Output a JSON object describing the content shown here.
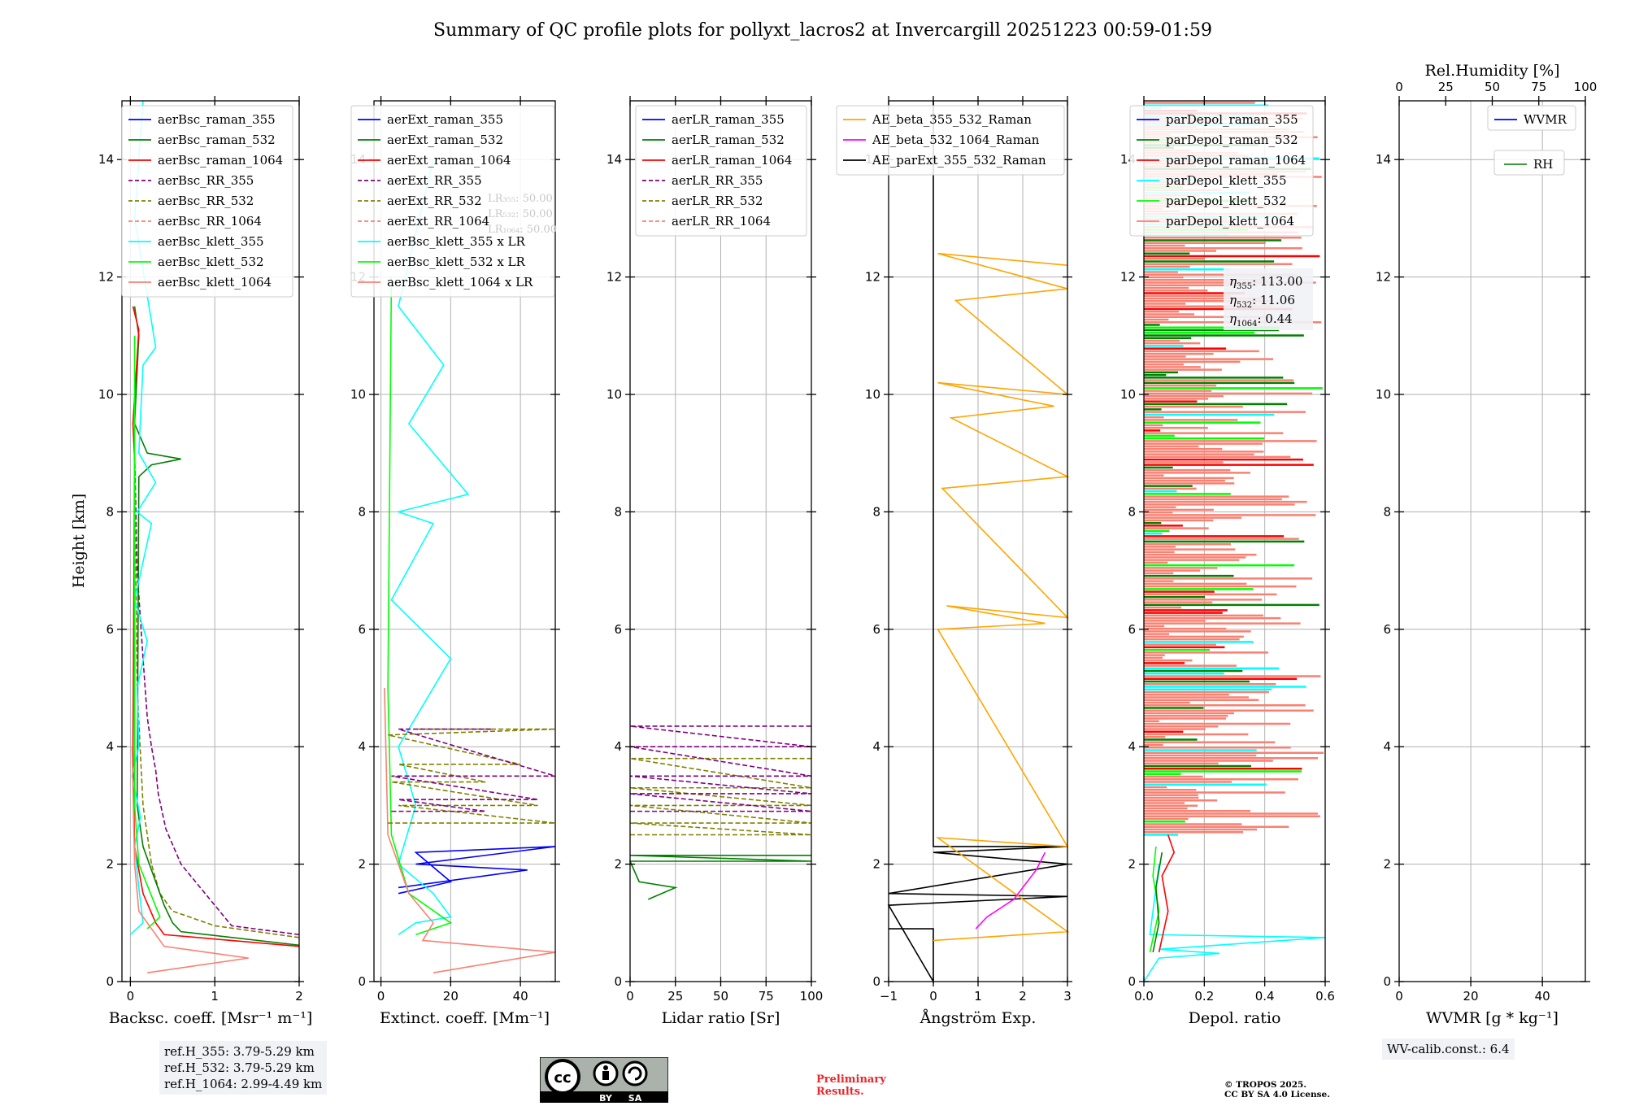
{
  "title": "Summary of QC profile plots for pollyxt_lacros2 at Invercargill 20251223 00:59-01:59",
  "y_axis_label": "Height [km]",
  "ref_heights": [
    "ref.H_355: 3.79-5.29 km",
    "ref.H_532: 3.79-5.29 km",
    "ref.H_1064: 2.99-4.49 km"
  ],
  "wv_calib": "WV-calib.const.: 6.4",
  "license_badge": {
    "cc": "cc",
    "by": "BY",
    "sa": "SA"
  },
  "preliminary": [
    "Preliminary",
    "Results."
  ],
  "copyright": [
    "© TROPOS 2025.",
    "CC BY SA 4.0 License."
  ],
  "eta_annotations": [
    {
      "label": "η",
      "sub": "355",
      "value": ": 113.00"
    },
    {
      "label": "η",
      "sub": "532",
      "value": ": 11.06"
    },
    {
      "label": "η",
      "sub": "1064",
      "value": ": 0.44"
    }
  ],
  "lr_faded_annotations": [
    "LR₃₅₅: 50.00",
    "LR₅₃₂: 50.00",
    "LR₁₀₆₄: 50.00"
  ],
  "colors": {
    "blue": "#0000ff",
    "green": "#008000",
    "red": "#ff0000",
    "purple": "#800080",
    "olive": "#808000",
    "salmon": "#fa8072",
    "cyan": "#00ffff",
    "lime": "#00ff00",
    "orange": "#ffa500",
    "magenta": "#ff00ff",
    "black": "#000000",
    "darkgreen": "#228b22"
  },
  "chart_data": [
    {
      "type": "line",
      "id": "backscatter",
      "xlabel": "Backsc. coeff. [Msr⁻¹ m⁻¹]",
      "xlim": [
        -0.1,
        2.0
      ],
      "xticks": [
        0,
        1,
        2
      ],
      "xtick_labels": [
        "0",
        "1",
        "2"
      ],
      "ylabel": "Height [km]",
      "ylim": [
        0,
        15
      ],
      "yticks": [
        0,
        2,
        4,
        6,
        8,
        10,
        12,
        14
      ],
      "grid": true,
      "legend": [
        "aerBsc_raman_355",
        "aerBsc_raman_532",
        "aerBsc_raman_1064",
        "aerBsc_RR_355",
        "aerBsc_RR_532",
        "aerBsc_RR_1064",
        "aerBsc_klett_355",
        "aerBsc_klett_532",
        "aerBsc_klett_1064"
      ],
      "legend_colors": [
        "blue",
        "green",
        "red",
        "purple",
        "olive",
        "salmon",
        "cyan",
        "lime",
        "salmon"
      ],
      "legend_dash": [
        false,
        false,
        false,
        true,
        true,
        true,
        false,
        false,
        false
      ],
      "series": [
        {
          "name": "aerBsc_RR_355",
          "color": "purple",
          "dash": true,
          "x": [
            2.0,
            1.2,
            1.0,
            0.6,
            0.42,
            0.33,
            0.3,
            0.25,
            0.2,
            0.15,
            0.08,
            0.05
          ],
          "y": [
            0.8,
            0.95,
            1.3,
            2.0,
            2.6,
            3.2,
            3.6,
            4.0,
            4.5,
            5.5,
            7.0,
            9.0
          ]
        },
        {
          "name": "aerBsc_RR_532",
          "color": "olive",
          "dash": true,
          "x": [
            2.0,
            1.0,
            0.5,
            0.35,
            0.25,
            0.15,
            0.08,
            0.05
          ],
          "y": [
            0.75,
            0.95,
            1.2,
            1.5,
            2.0,
            3.0,
            5.0,
            9.0
          ]
        },
        {
          "name": "aerBsc_raman_532",
          "color": "green",
          "dash": false,
          "x": [
            2.0,
            0.6,
            0.5,
            0.4,
            0.3,
            0.15,
            0.08,
            0.1,
            0.25,
            0.6,
            0.2,
            0.05,
            0.1,
            0.05
          ],
          "y": [
            0.62,
            0.85,
            1.0,
            1.3,
            1.7,
            2.3,
            3.0,
            8.6,
            8.8,
            8.9,
            9.0,
            9.5,
            11.0,
            11.5
          ]
        },
        {
          "name": "aerBsc_raman_1064",
          "color": "red",
          "dash": false,
          "x": [
            2.0,
            0.4,
            0.3,
            0.15,
            0.05,
            0.03,
            0.05,
            0.03,
            0.1,
            0.03
          ],
          "y": [
            0.6,
            0.8,
            1.0,
            1.5,
            2.3,
            4.0,
            8.9,
            9.5,
            11.1,
            11.5
          ]
        },
        {
          "name": "aerBsc_klett_355",
          "color": "cyan",
          "dash": false,
          "x": [
            0.0,
            0.15,
            0.1,
            0.05,
            0.12,
            0.02,
            0.1,
            0.08,
            0.2,
            0.05,
            0.25,
            0.08,
            0.3,
            0.1,
            0.15,
            0.3,
            0.05,
            0.15
          ],
          "y": [
            0.8,
            1.0,
            1.6,
            2.3,
            2.8,
            3.5,
            4.0,
            5.0,
            5.8,
            6.5,
            7.8,
            8.0,
            8.5,
            9.0,
            10.5,
            10.8,
            13.0,
            15.0
          ]
        },
        {
          "name": "aerBsc_klett_532",
          "color": "lime",
          "dash": false,
          "x": [
            0.2,
            0.35,
            0.1,
            0.05,
            0.05
          ],
          "y": [
            0.9,
            1.1,
            2.0,
            3.0,
            11.0
          ]
        },
        {
          "name": "aerBsc_klett_1064",
          "color": "salmon",
          "dash": false,
          "x": [
            0.2,
            1.4,
            0.4,
            0.1,
            0.05,
            0.02
          ],
          "y": [
            0.15,
            0.4,
            0.6,
            1.2,
            2.0,
            4.0
          ]
        }
      ]
    },
    {
      "type": "line",
      "id": "extinction",
      "xlabel": "Extinct. coeff. [Mm⁻¹]",
      "xlim": [
        -2,
        50
      ],
      "xticks": [
        0,
        20,
        40
      ],
      "xtick_labels": [
        "0",
        "20",
        "40"
      ],
      "ylabel": "",
      "ylim": [
        0,
        15
      ],
      "yticks": [
        0,
        2,
        4,
        6,
        8,
        10,
        12,
        14
      ],
      "grid": true,
      "legend": [
        "aerExt_raman_355",
        "aerExt_raman_532",
        "aerExt_raman_1064",
        "aerExt_RR_355",
        "aerExt_RR_532",
        "aerExt_RR_1064",
        "aerBsc_klett_355 x LR",
        "aerBsc_klett_532 x LR",
        "aerBsc_klett_1064 x LR"
      ],
      "legend_colors": [
        "blue",
        "green",
        "red",
        "purple",
        "olive",
        "salmon",
        "cyan",
        "lime",
        "salmon"
      ],
      "legend_dash": [
        false,
        false,
        false,
        true,
        true,
        true,
        false,
        false,
        false
      ],
      "series": [
        {
          "name": "aerExt_raman_355",
          "color": "blue",
          "dash": false,
          "x": [
            5,
            42,
            10,
            50,
            10,
            20,
            5
          ],
          "y": [
            1.6,
            1.9,
            2.0,
            2.3,
            2.2,
            1.7,
            1.5
          ]
        },
        {
          "name": "aerBsc_klett_355 x LR",
          "color": "cyan",
          "dash": false,
          "x": [
            5,
            10,
            20,
            15,
            5,
            10,
            5,
            20,
            3,
            15,
            5,
            25,
            8,
            18,
            5,
            15
          ],
          "y": [
            0.8,
            1.0,
            1.1,
            1.5,
            2.0,
            3.0,
            4.0,
            5.5,
            6.5,
            7.8,
            8.0,
            8.3,
            9.5,
            10.5,
            11.5,
            14.0
          ]
        },
        {
          "name": "aerBsc_klett_532 x LR",
          "color": "lime",
          "dash": false,
          "x": [
            10,
            20,
            8,
            3,
            2,
            3
          ],
          "y": [
            0.8,
            1.0,
            1.5,
            2.5,
            5.0,
            12.0
          ]
        },
        {
          "name": "aerBsc_klett_1064 x LR",
          "color": "salmon",
          "dash": false,
          "x": [
            15,
            50,
            12,
            15,
            8,
            2,
            1
          ],
          "y": [
            0.15,
            0.5,
            0.7,
            1.0,
            1.5,
            2.5,
            5.0
          ]
        },
        {
          "name": "aerExt_RR_532",
          "color": "olive",
          "dash": true,
          "x": [
            2,
            50,
            5,
            45,
            3,
            30,
            5,
            40,
            2,
            50,
            10
          ],
          "y": [
            2.7,
            2.7,
            3.0,
            3.0,
            3.4,
            3.4,
            3.7,
            3.7,
            4.2,
            4.3,
            4.3
          ]
        },
        {
          "name": "aerExt_RR_355",
          "color": "purple",
          "dash": true,
          "x": [
            3,
            30,
            5,
            45,
            3,
            50,
            5,
            32
          ],
          "y": [
            2.9,
            2.9,
            3.1,
            3.1,
            3.5,
            3.5,
            4.3,
            4.3
          ]
        }
      ]
    },
    {
      "type": "line",
      "id": "lidar_ratio",
      "xlabel": "Lidar ratio [Sr]",
      "xlim": [
        0,
        100
      ],
      "xticks": [
        0,
        25,
        50,
        75,
        100
      ],
      "xtick_labels": [
        "0",
        "25",
        "50",
        "75",
        "100"
      ],
      "ylabel": "",
      "ylim": [
        0,
        15
      ],
      "yticks": [
        0,
        2,
        4,
        6,
        8,
        10,
        12,
        14
      ],
      "grid": true,
      "legend": [
        "aerLR_raman_355",
        "aerLR_raman_532",
        "aerLR_raman_1064",
        "aerLR_RR_355",
        "aerLR_RR_532",
        "aerLR_RR_1064"
      ],
      "legend_colors": [
        "blue",
        "green",
        "red",
        "purple",
        "olive",
        "salmon"
      ],
      "legend_dash": [
        false,
        false,
        false,
        true,
        true,
        true
      ],
      "series": [
        {
          "name": "aerLR_raman_532",
          "color": "green",
          "dash": false,
          "x": [
            10,
            25,
            5,
            0,
            100,
            0,
            100
          ],
          "y": [
            1.4,
            1.6,
            1.7,
            2.05,
            2.05,
            2.15,
            2.15
          ]
        },
        {
          "name": "aerLR_RR_532",
          "color": "olive",
          "dash": true,
          "x": [
            0,
            100,
            0,
            100,
            0,
            100,
            0,
            100,
            0,
            100
          ],
          "y": [
            2.5,
            2.5,
            2.7,
            2.7,
            3.0,
            3.0,
            3.3,
            3.3,
            3.8,
            3.8
          ]
        },
        {
          "name": "aerLR_RR_355",
          "color": "purple",
          "dash": true,
          "x": [
            0,
            100,
            0,
            100,
            0,
            100,
            0,
            100,
            0,
            100
          ],
          "y": [
            2.9,
            2.9,
            3.2,
            3.2,
            3.5,
            3.5,
            4.0,
            4.0,
            4.35,
            4.35
          ]
        }
      ]
    },
    {
      "type": "line",
      "id": "angstrom",
      "xlabel": "Ångström Exp.",
      "xlim": [
        -1,
        3
      ],
      "xticks": [
        -1,
        0,
        1,
        2,
        3
      ],
      "xtick_labels": [
        "−1",
        "0",
        "1",
        "2",
        "3"
      ],
      "ylabel": "",
      "ylim": [
        0,
        15
      ],
      "yticks": [
        0,
        2,
        4,
        6,
        8,
        10,
        12,
        14
      ],
      "grid": true,
      "legend": [
        "AE_beta_355_532_Raman",
        "AE_beta_532_1064_Raman",
        "AE_parExt_355_532_Raman"
      ],
      "legend_colors": [
        "orange",
        "magenta",
        "black"
      ],
      "legend_dash": [
        false,
        false,
        false
      ],
      "series": [
        {
          "name": "AE_parExt_355_532_Raman",
          "color": "black",
          "dash": false,
          "x": [
            -1,
            0,
            0,
            -1,
            3,
            -1,
            3,
            0,
            3,
            0,
            0
          ],
          "y": [
            0.9,
            0.9,
            0.0,
            1.3,
            1.45,
            1.5,
            2.0,
            2.2,
            2.3,
            2.3,
            15.0
          ]
        },
        {
          "name": "AE_beta_355_532_Raman",
          "color": "orange",
          "dash": false,
          "x": [
            0,
            3,
            0.1,
            3,
            0.1,
            2.5,
            0.3,
            3,
            0.2,
            3,
            0.4,
            2.7,
            0.1,
            3,
            0.5,
            3,
            0.1,
            3
          ],
          "y": [
            0.7,
            0.85,
            2.45,
            2.3,
            6.0,
            6.1,
            6.4,
            6.2,
            8.4,
            8.6,
            9.6,
            9.8,
            10.2,
            10.0,
            11.6,
            11.8,
            12.4,
            12.2
          ]
        },
        {
          "name": "AE_beta_532_1064_Raman",
          "color": "magenta",
          "dash": false,
          "x": [
            0.95,
            1.2,
            1.8,
            2.3,
            2.5
          ],
          "y": [
            0.9,
            1.1,
            1.4,
            1.9,
            2.2
          ]
        }
      ]
    },
    {
      "type": "line",
      "id": "depol",
      "xlabel": "Depol. ratio",
      "xlim": [
        0,
        0.6
      ],
      "xticks": [
        0,
        0.2,
        0.4,
        0.6
      ],
      "xtick_labels": [
        "0.0",
        "0.2",
        "0.4",
        "0.6"
      ],
      "ylabel": "",
      "ylim": [
        0,
        15
      ],
      "yticks": [
        0,
        2,
        4,
        6,
        8,
        10,
        12,
        14
      ],
      "grid": true,
      "legend": [
        "parDepol_raman_355",
        "parDepol_raman_532",
        "parDepol_raman_1064",
        "parDepol_klett_355",
        "parDepol_klett_532",
        "parDepol_klett_1064"
      ],
      "legend_colors": [
        "blue",
        "green",
        "red",
        "cyan",
        "lime",
        "salmon"
      ],
      "legend_dash": [
        false,
        false,
        false,
        false,
        false,
        false
      ],
      "series": [
        {
          "name": "parDepol_klett_355",
          "color": "cyan",
          "dash": false,
          "x": [
            0.0,
            0.05,
            0.25,
            0.05,
            0.6,
            0.02,
            0.05
          ],
          "y": [
            0.0,
            0.4,
            0.48,
            0.55,
            0.75,
            0.8,
            2.0
          ]
        },
        {
          "name": "parDepol_klett_532",
          "color": "lime",
          "dash": false,
          "x": [
            0.02,
            0.05,
            0.03,
            0.04
          ],
          "y": [
            0.5,
            1.2,
            1.8,
            2.3
          ]
        },
        {
          "name": "parDepol_raman_532",
          "color": "green",
          "dash": false,
          "x": [
            0.03,
            0.05,
            0.04,
            0.06
          ],
          "y": [
            0.5,
            1.0,
            1.6,
            2.2
          ]
        },
        {
          "name": "parDepol_raman_1064",
          "color": "red",
          "dash": false,
          "x": [
            0.05,
            0.08,
            0.06,
            0.1,
            0.08
          ],
          "y": [
            0.5,
            1.2,
            1.8,
            2.2,
            2.5
          ]
        }
      ],
      "band_start_km": 2.5,
      "band_end_km": 15.0
    },
    {
      "type": "line",
      "id": "wvmr",
      "xlabel": "WVMR [g * kg⁻¹]",
      "xlim": [
        0,
        52
      ],
      "xticks": [
        0,
        20,
        40
      ],
      "xtick_labels": [
        "0",
        "20",
        "40"
      ],
      "top_xlabel": "Rel.Humidity [%]",
      "top_xlim": [
        0,
        100
      ],
      "top_xticks": [
        0,
        25,
        50,
        75,
        100
      ],
      "top_xtick_labels": [
        "0",
        "25",
        "50",
        "75",
        "100"
      ],
      "ylabel": "",
      "ylim": [
        0,
        15
      ],
      "yticks": [
        0,
        2,
        4,
        6,
        8,
        10,
        12,
        14
      ],
      "grid": true,
      "legend": [
        "WVMR",
        "RH"
      ],
      "legend_colors": [
        "blue",
        "darkgreen"
      ],
      "legend_dash": [
        false,
        false
      ],
      "series": []
    }
  ]
}
